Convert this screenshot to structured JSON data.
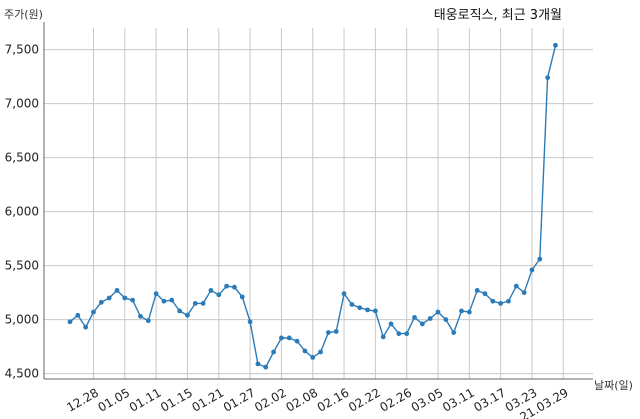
{
  "chart_data": {
    "type": "line",
    "title": "태웅로직스, 최근 3개월",
    "ylabel": "주가(원)",
    "xlabel": "날짜(일)",
    "ylim": [
      4450,
      7700
    ],
    "yticks": [
      4500,
      5000,
      5500,
      6000,
      6500,
      7000,
      7500
    ],
    "ytick_labels": [
      "4,500",
      "5,000",
      "5,500",
      "6,000",
      "6,500",
      "7,000",
      "7,500"
    ],
    "grid": true,
    "color": "#2b7bb9",
    "xtick_labels": [
      "12.28",
      "01.05",
      "01.11",
      "01.15",
      "01.21",
      "01.27",
      "02.02",
      "02.08",
      "02.16",
      "02.22",
      "02.26",
      "03.05",
      "03.11",
      "03.17",
      "03.23",
      "21.03.29"
    ],
    "xtick_index": [
      3,
      7,
      11,
      15,
      19,
      23,
      27,
      31,
      35,
      39,
      43,
      47,
      51,
      55,
      59,
      63
    ],
    "values": [
      4980,
      5040,
      4930,
      5070,
      5160,
      5200,
      5270,
      5200,
      5180,
      5030,
      4990,
      5240,
      5170,
      5180,
      5080,
      5040,
      5150,
      5150,
      5270,
      5230,
      5310,
      5300,
      5210,
      4980,
      4590,
      4560,
      4700,
      4830,
      4830,
      4800,
      4710,
      4650,
      4700,
      4880,
      4890,
      5240,
      5140,
      5110,
      5090,
      5080,
      4840,
      4960,
      4870,
      4870,
      5020,
      4960,
      5010,
      5070,
      5000,
      4880,
      5080,
      5070,
      5270,
      5240,
      5170,
      5150,
      5170,
      5310,
      5250,
      5460,
      5560,
      7240,
      7540
    ]
  }
}
